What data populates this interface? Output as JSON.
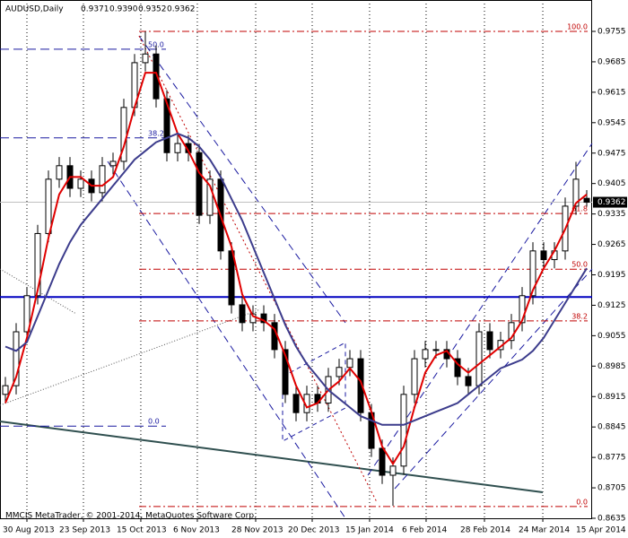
{
  "chart_data": {
    "type": "candlestick",
    "header": {
      "symbol": "AUDUSD,Daily",
      "open": "0.9371",
      "high": "0.9390",
      "low": "0.9352",
      "close": "0.9362"
    },
    "current_price": 0.9362,
    "current_price_label": "0.9362",
    "copyright": "MMCIS MetaTrader, © 2001-2014, MetaQuotes Software Corp.",
    "xlim": [
      0,
      55
    ],
    "xticks": [
      {
        "value": 2,
        "label": "30 Aug 2013"
      },
      {
        "value": 7.25,
        "label": "23 Sep 2013"
      },
      {
        "value": 12.58,
        "label": "15 Oct 2013"
      },
      {
        "value": 17.83,
        "label": "6 Nov 2013"
      },
      {
        "value": 23.25,
        "label": "28 Nov 2013"
      },
      {
        "value": 28.5,
        "label": "20 Dec 2013"
      },
      {
        "value": 33.83,
        "label": "15 Jan 2014"
      },
      {
        "value": 39.08,
        "label": "6 Feb 2014"
      },
      {
        "value": 44.5,
        "label": "28 Feb 2014"
      },
      {
        "value": 49.92,
        "label": "24 Mar 2014"
      },
      {
        "value": 55.25,
        "label": "15 Apr 2014"
      }
    ],
    "ylim": [
      0.8635,
      0.9755
    ],
    "yticks": [
      0.9755,
      0.9685,
      0.9615,
      0.9545,
      0.9475,
      0.9405,
      0.9335,
      0.9265,
      0.9195,
      0.9125,
      0.9055,
      0.8985,
      0.8915,
      0.8845,
      0.8775,
      0.8705,
      0.8635
    ],
    "grid": "vertical",
    "candles": {
      "open": [
        0.892,
        0.894,
        0.9064,
        0.9147,
        0.929,
        0.9415,
        0.9446,
        0.9394,
        0.9415,
        0.9384,
        0.9446,
        0.9456,
        0.958,
        0.9683,
        0.9703,
        0.96,
        0.9476,
        0.9497,
        0.9476,
        0.9332,
        0.9415,
        0.925,
        0.9126,
        0.9085,
        0.9105,
        0.9085,
        0.9023,
        0.892,
        0.8878,
        0.892,
        0.89,
        0.8961,
        0.8982,
        0.9002,
        0.8878,
        0.8796,
        0.8734,
        0.8755,
        0.892,
        0.9002,
        0.9023,
        0.9023,
        0.9002,
        0.8961,
        0.894,
        0.9064,
        0.9023,
        0.9044,
        0.9085,
        0.9147,
        0.925,
        0.923,
        0.925,
        0.9353,
        0.9371
      ],
      "high": [
        0.896,
        0.9084,
        0.9167,
        0.931,
        0.9435,
        0.9466,
        0.9466,
        0.9435,
        0.9435,
        0.9466,
        0.9476,
        0.96,
        0.9703,
        0.9755,
        0.9723,
        0.962,
        0.9517,
        0.9517,
        0.9496,
        0.9435,
        0.9435,
        0.927,
        0.9146,
        0.9125,
        0.9125,
        0.9105,
        0.9043,
        0.894,
        0.894,
        0.894,
        0.8981,
        0.9002,
        0.9022,
        0.9022,
        0.8898,
        0.8816,
        0.8775,
        0.894,
        0.9022,
        0.9043,
        0.9043,
        0.9043,
        0.9022,
        0.8981,
        0.9084,
        0.9084,
        0.9064,
        0.9105,
        0.9167,
        0.927,
        0.927,
        0.927,
        0.9373,
        0.9455,
        0.939
      ],
      "low": [
        0.89,
        0.892,
        0.9044,
        0.9127,
        0.927,
        0.9395,
        0.9374,
        0.9374,
        0.9364,
        0.9364,
        0.9426,
        0.9436,
        0.956,
        0.9663,
        0.958,
        0.9456,
        0.9456,
        0.9456,
        0.9312,
        0.9312,
        0.923,
        0.9106,
        0.9065,
        0.9065,
        0.9065,
        0.9003,
        0.89,
        0.8858,
        0.8858,
        0.888,
        0.888,
        0.8941,
        0.8962,
        0.8858,
        0.8776,
        0.8714,
        0.8664,
        0.8735,
        0.89,
        0.8982,
        0.9003,
        0.8982,
        0.8941,
        0.892,
        0.892,
        0.9003,
        0.9003,
        0.9024,
        0.9065,
        0.9127,
        0.921,
        0.921,
        0.923,
        0.9333,
        0.9352
      ],
      "close": [
        0.894,
        0.9064,
        0.9147,
        0.929,
        0.9415,
        0.9446,
        0.9394,
        0.9415,
        0.9384,
        0.9446,
        0.9456,
        0.958,
        0.9683,
        0.9703,
        0.96,
        0.9476,
        0.9497,
        0.9476,
        0.9332,
        0.9415,
        0.925,
        0.9126,
        0.9085,
        0.9105,
        0.9085,
        0.9023,
        0.892,
        0.8878,
        0.892,
        0.89,
        0.8961,
        0.8982,
        0.9002,
        0.8878,
        0.8796,
        0.8734,
        0.8755,
        0.892,
        0.9002,
        0.9023,
        0.9023,
        0.9002,
        0.8961,
        0.894,
        0.9064,
        0.9023,
        0.9044,
        0.9085,
        0.9147,
        0.925,
        0.923,
        0.925,
        0.9353,
        0.9415,
        0.9362
      ]
    },
    "lines": [
      {
        "color": "#e00000",
        "values": [
          0.89,
          0.896,
          0.905,
          0.916,
          0.928,
          0.938,
          0.942,
          0.942,
          0.94,
          0.94,
          0.942,
          0.949,
          0.958,
          0.966,
          0.966,
          0.959,
          0.952,
          0.948,
          0.943,
          0.94,
          0.933,
          0.926,
          0.915,
          0.91,
          0.909,
          0.907,
          0.901,
          0.894,
          0.889,
          0.89,
          0.893,
          0.895,
          0.898,
          0.895,
          0.888,
          0.88,
          0.876,
          0.88,
          0.889,
          0.897,
          0.901,
          0.902,
          0.899,
          0.897,
          0.899,
          0.901,
          0.903,
          0.905,
          0.909,
          0.916,
          0.921,
          0.925,
          0.93,
          0.936,
          0.938
        ]
      },
      {
        "color": "#3c3c8c",
        "values": [
          0.903,
          0.902,
          0.904,
          0.91,
          0.916,
          0.922,
          0.927,
          0.931,
          0.934,
          0.937,
          0.94,
          0.943,
          0.946,
          0.948,
          0.95,
          0.951,
          0.952,
          0.951,
          0.949,
          0.946,
          0.942,
          0.937,
          0.932,
          0.926,
          0.92,
          0.914,
          0.908,
          0.903,
          0.899,
          0.896,
          0.893,
          0.891,
          0.889,
          0.887,
          0.886,
          0.885,
          0.885,
          0.885,
          0.886,
          0.887,
          0.888,
          0.889,
          0.89,
          0.892,
          0.894,
          0.896,
          0.898,
          0.899,
          0.9,
          0.902,
          0.905,
          0.909,
          0.913,
          0.917,
          0.921
        ]
      }
    ],
    "hline": {
      "color": "#0000c0",
      "price": 0.9144
    },
    "fibo_right": {
      "color": "#c00000",
      "levels": [
        {
          "label": "100.0",
          "price": 0.9755
        },
        {
          "label": "61.8",
          "price": 0.9336
        },
        {
          "label": "50.0",
          "price": 0.9208
        },
        {
          "label": "38.2",
          "price": 0.9089
        },
        {
          "label": "0.0",
          "price": 0.8662
        }
      ]
    },
    "fibo_left": {
      "color": "#1a1aa0",
      "levels": [
        {
          "label": "50.0",
          "price": 0.9714
        },
        {
          "label": "38.2",
          "price": 0.951
        },
        {
          "label": "0.0",
          "price": 0.8847
        }
      ]
    }
  }
}
